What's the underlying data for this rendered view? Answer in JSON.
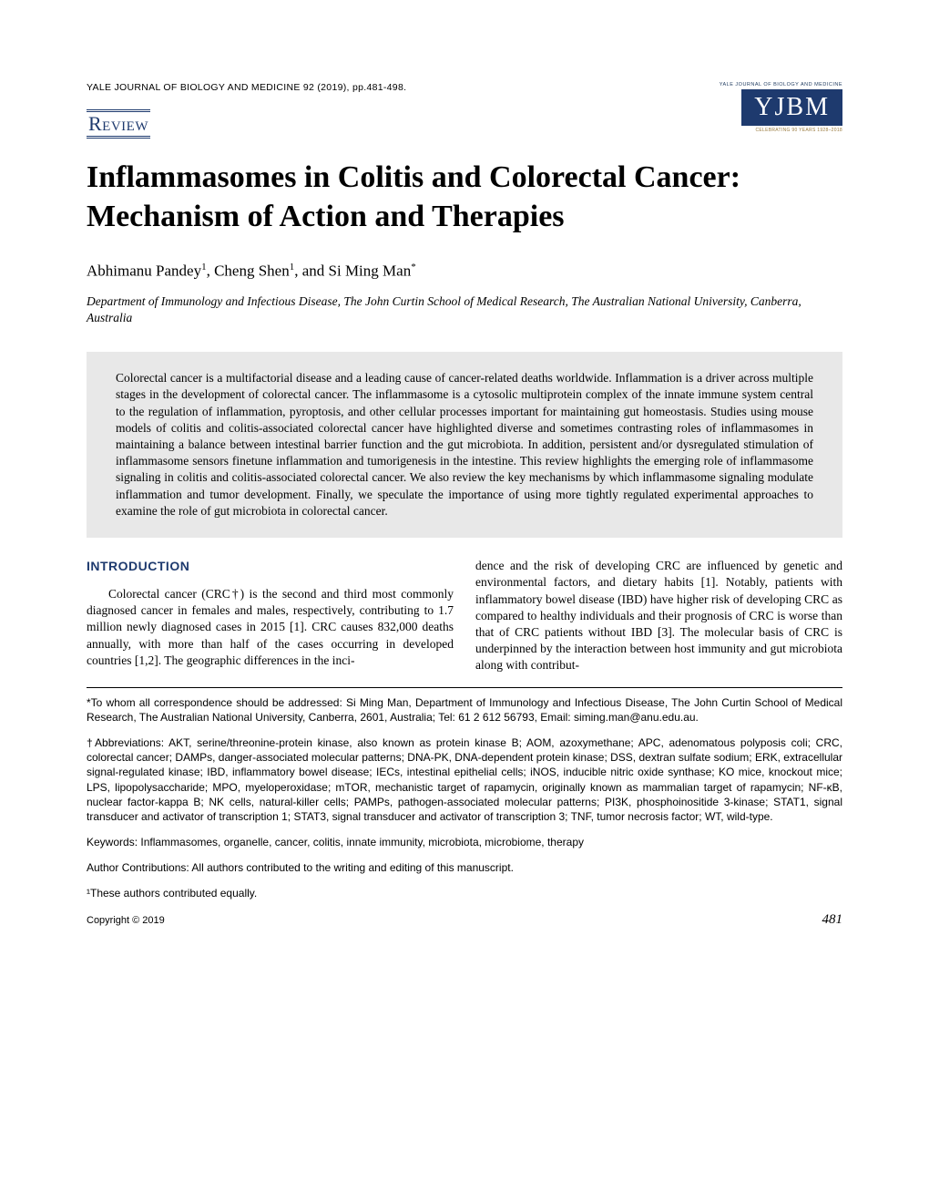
{
  "header": {
    "journal_ref": "YALE JOURNAL OF BIOLOGY AND MEDICINE 92 (2019), pp.481-498.",
    "logo_top": "YALE JOURNAL OF BIOLOGY AND MEDICINE",
    "logo_main": "YJBM",
    "logo_bottom": "CELEBRATING 90 YEARS 1928–2018"
  },
  "section_label": "Review",
  "title": "Inflammasomes in Colitis and Colorectal Cancer: Mechanism of Action and Therapies",
  "authors_html": "Abhimanu Pandey<sup>1</sup>, Cheng Shen<sup>1</sup>, and Si Ming Man<sup>*</sup>",
  "affiliation": "Department of Immunology and Infectious Disease, The John Curtin School of Medical Research, The Australian National University, Canberra, Australia",
  "abstract": "Colorectal cancer is a multifactorial disease and a leading cause of cancer-related deaths worldwide. Inflammation is a driver across multiple stages in the development of colorectal cancer. The inflammasome is a cytosolic multiprotein complex of the innate immune system central to the regulation of inflammation, pyroptosis, and other cellular processes important for maintaining gut homeostasis. Studies using mouse models of colitis and colitis-associated colorectal cancer have highlighted diverse and sometimes contrasting roles of inflammasomes in maintaining a balance between intestinal barrier function and the gut microbiota. In addition, persistent and/or dysregulated stimulation of inflammasome sensors finetune inflammation and tumorigenesis in the intestine. This review highlights the emerging role of inflammasome signaling in colitis and colitis-associated colorectal cancer. We also review the key mechanisms by which inflammasome signaling modulate inflammation and tumor development. Finally, we speculate the importance of using more tightly regulated experimental approaches to examine the role of gut microbiota in colorectal cancer.",
  "intro_heading": "INTRODUCTION",
  "body": {
    "col1": "Colorectal cancer (CRC†) is the second and third most commonly diagnosed cancer in females and males, respectively, contributing to 1.7 million newly diagnosed cases in 2015 [1]. CRC causes 832,000 deaths annually, with more than half of the cases occurring in developed countries [1,2]. The geographic differences in the inci-",
    "col2": "dence and the risk of developing CRC are influenced by genetic and environmental factors, and dietary habits [1]. Notably, patients with inflammatory bowel disease (IBD) have higher risk of developing CRC as compared to healthy individuals and their prognosis of CRC is worse than that of CRC patients without IBD [3]. The molecular basis of CRC is underpinned by the interaction between host immunity and gut microbiota along with contribut-"
  },
  "footnotes": {
    "correspondence": "*To whom all correspondence should be addressed: Si Ming Man, Department of Immunology and Infectious Disease, The John Curtin School of Medical Research, The Australian National University, Canberra, 2601, Australia; Tel: 61 2 612 56793, Email: siming.man@anu.edu.au.",
    "abbreviations": "†Abbreviations: AKT, serine/threonine-protein kinase, also known as protein kinase B; AOM, azoxymethane; APC, adenomatous polyposis coli; CRC, colorectal cancer; DAMPs, danger-associated molecular patterns; DNA-PK, DNA-dependent protein kinase; DSS, dextran sulfate sodium; ERK, extracellular signal-regulated kinase; IBD, inflammatory bowel disease; IECs, intestinal epithelial cells; iNOS, inducible nitric oxide synthase; KO mice, knockout mice; LPS, lipopolysaccharide; MPO, myeloperoxidase; mTOR, mechanistic target of rapamycin, originally known as mammalian target of rapamycin; NF-κB, nuclear factor-kappa B; NK cells, natural-killer cells; PAMPs, pathogen-associated molecular patterns; PI3K, phosphoinositide 3-kinase; STAT1, signal transducer and activator of transcription 1; STAT3, signal transducer and activator of transcription 3; TNF, tumor necrosis factor; WT, wild-type.",
    "keywords": "Keywords: Inflammasomes, organelle, cancer, colitis, innate immunity, microbiota, microbiome, therapy",
    "contributions": "Author Contributions: All authors contributed to the writing and editing of this manuscript.",
    "equal": "¹These authors contributed equally."
  },
  "footer": {
    "copyright": "Copyright © 2019",
    "page_number": "481"
  }
}
